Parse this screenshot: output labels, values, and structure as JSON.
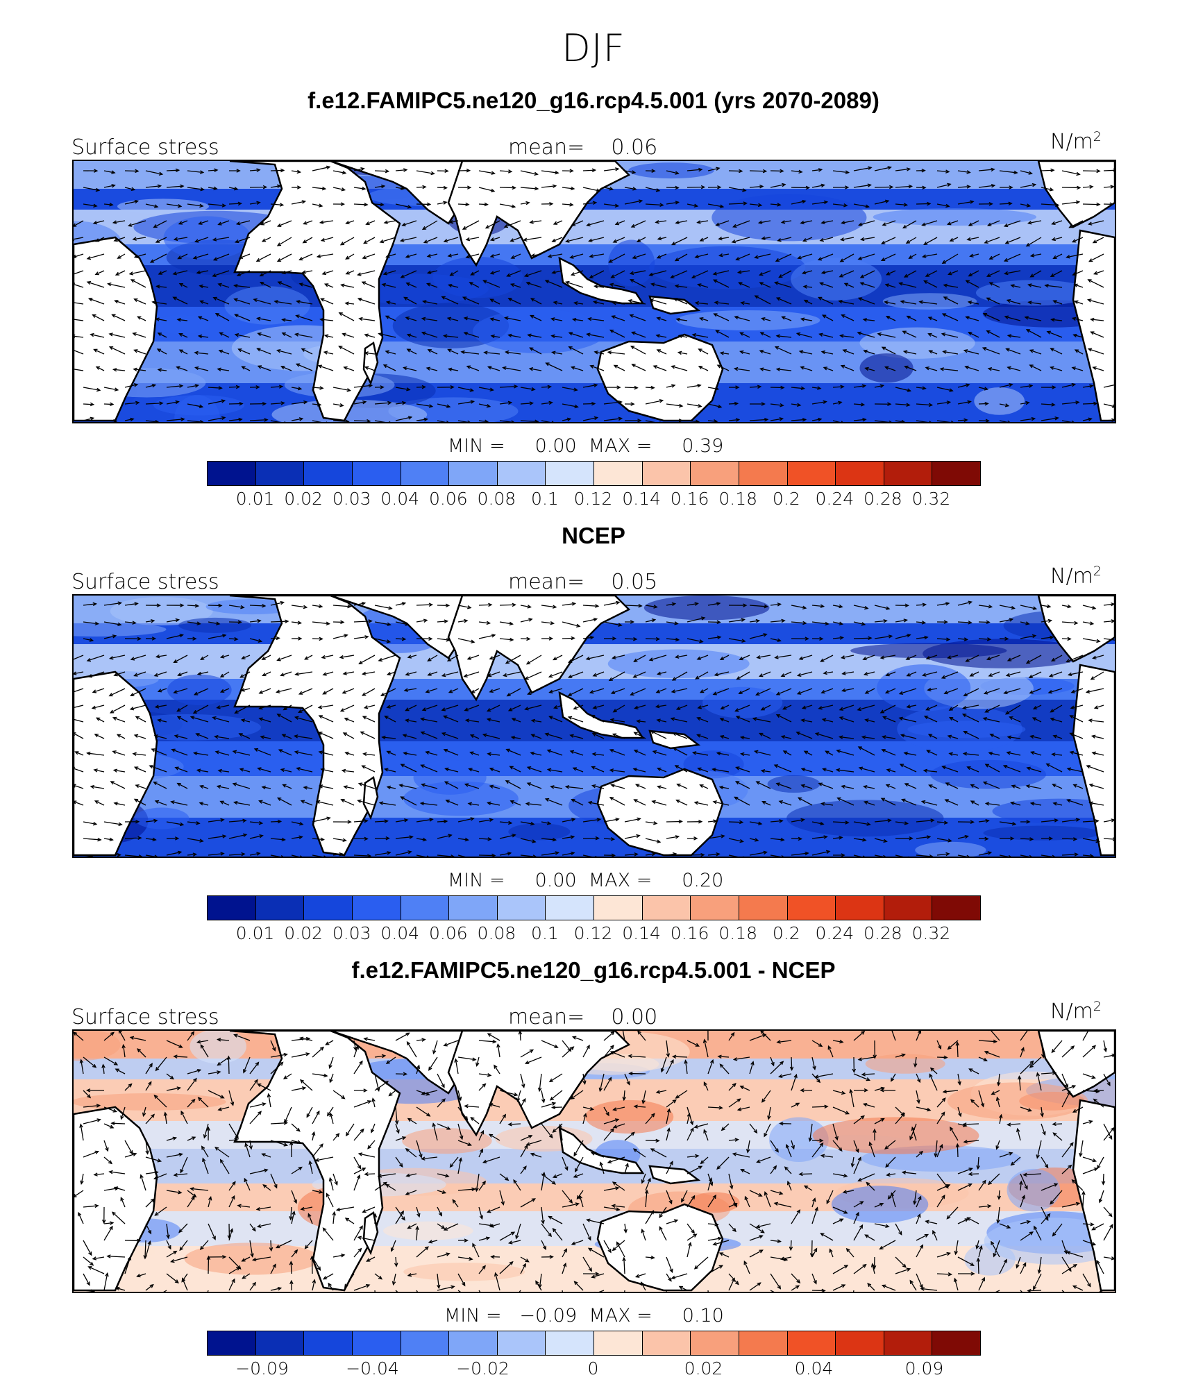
{
  "figure": {
    "season": "DJF"
  },
  "panels": [
    {
      "title": "f.e12.FAMIPC5.ne120_g16.rcp4.5.001 (yrs 2070-2089)",
      "variable": "Surface stress",
      "mean_label": "mean=    0.06",
      "units": "N/m",
      "units_exp": "2",
      "min_max": "MIN =     0.00  MAX =     0.39",
      "ocean_color": "#2b5ee8",
      "colorbar": {
        "colors": [
          "#00138f",
          "#0a2fb5",
          "#1546dc",
          "#2a5ef0",
          "#4f80f5",
          "#7fa6f8",
          "#aac5fa",
          "#d5e4fc",
          "#fde6d6",
          "#fbc4aa",
          "#f8a07c",
          "#f47a4e",
          "#f05226",
          "#dc3514",
          "#b21d0b",
          "#7f0a05"
        ],
        "ticks": [
          "0.01",
          "0.02",
          "0.03",
          "0.04",
          "0.06",
          "0.08",
          "0.1",
          "0.12",
          "0.14",
          "0.16",
          "0.18",
          "0.2",
          "0.24",
          "0.28",
          "0.32"
        ]
      }
    },
    {
      "title": "NCEP",
      "variable": "Surface stress",
      "mean_label": "mean=    0.05",
      "units": "N/m",
      "units_exp": "2",
      "min_max": "MIN =     0.00  MAX =     0.20",
      "ocean_color": "#2f63ea",
      "colorbar": {
        "colors": [
          "#00138f",
          "#0a2fb5",
          "#1546dc",
          "#2a5ef0",
          "#4f80f5",
          "#7fa6f8",
          "#aac5fa",
          "#d5e4fc",
          "#fde6d6",
          "#fbc4aa",
          "#f8a07c",
          "#f47a4e",
          "#f05226",
          "#dc3514",
          "#b21d0b",
          "#7f0a05"
        ],
        "ticks": [
          "0.01",
          "0.02",
          "0.03",
          "0.04",
          "0.06",
          "0.08",
          "0.1",
          "0.12",
          "0.14",
          "0.16",
          "0.18",
          "0.2",
          "0.24",
          "0.28",
          "0.32"
        ]
      }
    },
    {
      "title": "f.e12.FAMIPC5.ne120_g16.rcp4.5.001 - NCEP",
      "variable": "Surface stress",
      "mean_label": "mean=    0.00",
      "units": "N/m",
      "units_exp": "2",
      "min_max": "MIN =   −0.09  MAX =     0.10",
      "ocean_color": "#fbe1d6",
      "colorbar": {
        "colors": [
          "#00138f",
          "#0a2fb5",
          "#1546dc",
          "#2a5ef0",
          "#4f80f5",
          "#7fa6f8",
          "#aac5fa",
          "#d5e4fc",
          "#fde6d6",
          "#fbc4aa",
          "#f8a07c",
          "#f47a4e",
          "#f05226",
          "#dc3514",
          "#b21d0b",
          "#7f0a05"
        ],
        "ticks": [
          "−0.09",
          "−0.04",
          "−0.02",
          "0",
          "0.02",
          "0.04",
          "0.09"
        ]
      }
    }
  ]
}
